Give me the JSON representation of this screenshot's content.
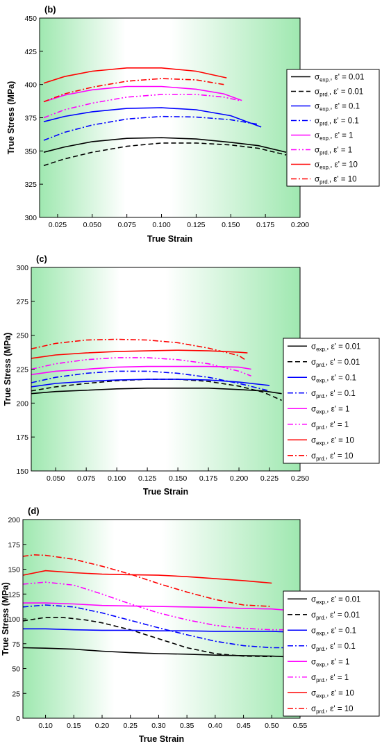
{
  "chart_data": [
    {
      "type": "line",
      "panel_label": "(b)",
      "xlabel": "True Strain",
      "ylabel": "True Stress (MPa)",
      "xlim": [
        0.012,
        0.2
      ],
      "ylim": [
        300,
        450
      ],
      "xticks": [
        0.025,
        0.05,
        0.075,
        0.1,
        0.125,
        0.15,
        0.175,
        0.2
      ],
      "xtick_labels": [
        "0.025",
        "0.050",
        "0.075",
        "0.100",
        "0.125",
        "0.150",
        "0.175",
        "0.200"
      ],
      "yticks": [
        300,
        325,
        350,
        375,
        400,
        425,
        450
      ],
      "ytick_labels": [
        "300",
        "325",
        "350",
        "375",
        "400",
        "425",
        "450"
      ],
      "legend_position": "right",
      "series": [
        {
          "name": "σexp., ε' = 0.01",
          "sym": "σ",
          "sub": "exp.",
          "rate": ", ε' = 0.01",
          "color": "#000000",
          "dash": "solid",
          "x": [
            0.015,
            0.03,
            0.05,
            0.075,
            0.1,
            0.125,
            0.15,
            0.17,
            0.19
          ],
          "y": [
            349,
            353,
            357,
            359.5,
            360,
            359,
            356.5,
            354,
            349
          ]
        },
        {
          "name": "σprd., ε' = 0.01",
          "sym": "σ",
          "sub": "prd.",
          "rate": ", ε' = 0.01",
          "color": "#000000",
          "dash": "dash",
          "x": [
            0.015,
            0.03,
            0.05,
            0.075,
            0.1,
            0.125,
            0.15,
            0.17,
            0.19
          ],
          "y": [
            339,
            344,
            349,
            353.5,
            356,
            356,
            354.5,
            352,
            347
          ]
        },
        {
          "name": "σexp., ε' = 0.1",
          "sym": "σ",
          "sub": "exp.",
          "rate": ", ε' = 0.1",
          "color": "#0000ff",
          "dash": "solid",
          "x": [
            0.015,
            0.03,
            0.05,
            0.075,
            0.1,
            0.125,
            0.15,
            0.172
          ],
          "y": [
            372,
            376,
            379.5,
            382,
            382.5,
            381,
            376.5,
            368
          ]
        },
        {
          "name": "σprd., ε' = 0.1",
          "sym": "σ",
          "sub": "prd.",
          "rate": ", ε' = 0.1",
          "color": "#0000ff",
          "dash": "dashdot",
          "x": [
            0.015,
            0.03,
            0.05,
            0.075,
            0.1,
            0.125,
            0.15,
            0.17
          ],
          "y": [
            358,
            364,
            369.5,
            374,
            376,
            375.5,
            373.5,
            370
          ]
        },
        {
          "name": "σexp., ε' = 1",
          "sym": "σ",
          "sub": "exp.",
          "rate": ", ε' = 1",
          "color": "#ff00ff",
          "dash": "solid",
          "x": [
            0.015,
            0.03,
            0.05,
            0.075,
            0.1,
            0.125,
            0.145,
            0.158
          ],
          "y": [
            387,
            392,
            396,
            398.5,
            398.5,
            396.5,
            393,
            388
          ]
        },
        {
          "name": "σprd., ε' = 1",
          "sym": "σ",
          "sub": "prd.",
          "rate": ", ε' = 1",
          "color": "#ff00ff",
          "dash": "dashdot2",
          "x": [
            0.015,
            0.03,
            0.05,
            0.075,
            0.1,
            0.125,
            0.145,
            0.156
          ],
          "y": [
            375,
            381,
            386,
            390.5,
            392.5,
            392.5,
            390.5,
            388
          ]
        },
        {
          "name": "σexp., ε' = 10",
          "sym": "σ",
          "sub": "exp.",
          "rate": ", ε' = 10",
          "color": "#ff0000",
          "dash": "solid",
          "x": [
            0.015,
            0.03,
            0.05,
            0.075,
            0.1,
            0.125,
            0.147
          ],
          "y": [
            401,
            406,
            410,
            412.5,
            412.5,
            410,
            405
          ]
        },
        {
          "name": "σprd., ε' = 10",
          "sym": "σ",
          "sub": "prd.",
          "rate": ", ε' = 10",
          "color": "#ff0000",
          "dash": "dashdot",
          "x": [
            0.015,
            0.03,
            0.05,
            0.075,
            0.1,
            0.125,
            0.145
          ],
          "y": [
            387,
            393,
            398,
            402.5,
            404.5,
            403.5,
            400
          ]
        }
      ]
    },
    {
      "type": "line",
      "panel_label": "(c)",
      "xlabel": "True Strain",
      "ylabel": "True Stress (MPa)",
      "xlim": [
        0.03,
        0.25
      ],
      "ylim": [
        150,
        300
      ],
      "xticks": [
        0.05,
        0.075,
        0.1,
        0.125,
        0.15,
        0.175,
        0.2,
        0.225,
        0.25
      ],
      "xtick_labels": [
        "0.050",
        "0.075",
        "0.100",
        "0.125",
        "0.150",
        "0.175",
        "0.200",
        "0.225",
        "0.250"
      ],
      "yticks": [
        150,
        175,
        200,
        225,
        250,
        275,
        300
      ],
      "ytick_labels": [
        "150",
        "175",
        "200",
        "225",
        "250",
        "275",
        "300"
      ],
      "legend_position": "right",
      "series": [
        {
          "name": "σexp., ε' = 0.01",
          "sym": "σ",
          "sub": "exp.",
          "rate": ", ε' = 0.01",
          "color": "#000000",
          "dash": "solid",
          "x": [
            0.03,
            0.05,
            0.075,
            0.1,
            0.125,
            0.15,
            0.175,
            0.2,
            0.22,
            0.235
          ],
          "y": [
            207,
            208.5,
            209.5,
            210.5,
            211,
            211,
            211,
            210,
            209,
            207
          ]
        },
        {
          "name": "σprd., ε' = 0.01",
          "sym": "σ",
          "sub": "prd.",
          "rate": ", ε' = 0.01",
          "color": "#000000",
          "dash": "dash",
          "x": [
            0.03,
            0.05,
            0.075,
            0.1,
            0.125,
            0.15,
            0.175,
            0.2,
            0.22,
            0.235
          ],
          "y": [
            209,
            212,
            214.5,
            216.5,
            217.5,
            217.5,
            216,
            212.5,
            208,
            202
          ]
        },
        {
          "name": "σexp., ε' = 0.1",
          "sym": "σ",
          "sub": "exp.",
          "rate": ", ε' = 0.1",
          "color": "#0000ff",
          "dash": "solid",
          "x": [
            0.03,
            0.05,
            0.075,
            0.1,
            0.125,
            0.15,
            0.175,
            0.2,
            0.225
          ],
          "y": [
            212,
            214.5,
            216,
            217,
            217.5,
            217.5,
            217,
            215.5,
            213
          ]
        },
        {
          "name": "σprd., ε' = 0.1",
          "sym": "σ",
          "sub": "prd.",
          "rate": ", ε' = 0.1",
          "color": "#0000ff",
          "dash": "dashdot",
          "x": [
            0.03,
            0.05,
            0.075,
            0.1,
            0.125,
            0.15,
            0.175,
            0.2,
            0.225
          ],
          "y": [
            215,
            219,
            222,
            223.5,
            223.5,
            222,
            219,
            214.5,
            209
          ]
        },
        {
          "name": "σexp., ε' = 1",
          "sym": "σ",
          "sub": "exp.",
          "rate": ", ε' = 1",
          "color": "#ff00ff",
          "dash": "solid",
          "x": [
            0.03,
            0.05,
            0.075,
            0.1,
            0.125,
            0.15,
            0.175,
            0.2,
            0.21
          ],
          "y": [
            221,
            223.5,
            225,
            226.5,
            227,
            227,
            227,
            226.5,
            225
          ]
        },
        {
          "name": "σprd., ε' = 1",
          "sym": "σ",
          "sub": "prd.",
          "rate": ", ε' = 1",
          "color": "#ff00ff",
          "dash": "dashdot2",
          "x": [
            0.03,
            0.05,
            0.075,
            0.1,
            0.125,
            0.15,
            0.175,
            0.2,
            0.21
          ],
          "y": [
            225,
            229,
            232,
            233.5,
            233.5,
            232,
            229,
            223.5,
            220
          ]
        },
        {
          "name": "σexp., ε' = 10",
          "sym": "σ",
          "sub": "exp.",
          "rate": ", ε' = 10",
          "color": "#ff0000",
          "dash": "solid",
          "x": [
            0.03,
            0.05,
            0.075,
            0.1,
            0.125,
            0.15,
            0.175,
            0.2,
            0.207
          ],
          "y": [
            233,
            235.5,
            237,
            238,
            238.5,
            239,
            238.5,
            237.5,
            237
          ]
        },
        {
          "name": "σprd., ε' = 10",
          "sym": "σ",
          "sub": "prd.",
          "rate": ", ε' = 10",
          "color": "#ff0000",
          "dash": "dashdot",
          "x": [
            0.03,
            0.05,
            0.075,
            0.1,
            0.125,
            0.15,
            0.175,
            0.2,
            0.205
          ],
          "y": [
            240,
            244,
            246.5,
            247,
            246.5,
            244.5,
            240.5,
            235,
            232
          ]
        }
      ]
    },
    {
      "type": "line",
      "panel_label": "(d)",
      "xlabel": "True Strain",
      "ylabel": "True Stress (MPa)",
      "xlim": [
        0.06,
        0.55
      ],
      "ylim": [
        0,
        200
      ],
      "xticks": [
        0.1,
        0.15,
        0.2,
        0.25,
        0.3,
        0.35,
        0.4,
        0.45,
        0.5,
        0.55
      ],
      "xtick_labels": [
        "0.10",
        "0.15",
        "0.20",
        "0.25",
        "0.30",
        "0.35",
        "0.40",
        "0.45",
        "0.50",
        "0.55"
      ],
      "yticks": [
        0,
        25,
        50,
        75,
        100,
        125,
        150,
        175,
        200
      ],
      "ytick_labels": [
        "0",
        "25",
        "50",
        "75",
        "100",
        "125",
        "150",
        "175",
        "200"
      ],
      "legend_position": "right",
      "series": [
        {
          "name": "σexp., ε' = 0.01",
          "sym": "σ",
          "sub": "exp.",
          "rate": ", ε' = 0.01",
          "color": "#000000",
          "dash": "solid",
          "x": [
            0.06,
            0.1,
            0.15,
            0.2,
            0.25,
            0.3,
            0.35,
            0.4,
            0.45,
            0.5,
            0.52
          ],
          "y": [
            71,
            70.5,
            69.5,
            67.5,
            66,
            65,
            64.5,
            63.5,
            63,
            62.5,
            62
          ]
        },
        {
          "name": "σprd., ε' = 0.01",
          "sym": "σ",
          "sub": "prd.",
          "rate": ", ε' = 0.01",
          "color": "#000000",
          "dash": "dash",
          "x": [
            0.06,
            0.1,
            0.13,
            0.17,
            0.2,
            0.25,
            0.3,
            0.35,
            0.4,
            0.45,
            0.5
          ],
          "y": [
            98,
            101.5,
            101.5,
            99,
            96,
            89,
            80,
            71,
            65,
            62.5,
            62
          ]
        },
        {
          "name": "σexp., ε' = 0.1",
          "sym": "σ",
          "sub": "exp.",
          "rate": ", ε' = 0.1",
          "color": "#0000ff",
          "dash": "solid",
          "x": [
            0.06,
            0.1,
            0.15,
            0.2,
            0.25,
            0.3,
            0.35,
            0.4,
            0.45,
            0.5,
            0.52
          ],
          "y": [
            90,
            90,
            89,
            88.5,
            88.5,
            88,
            88,
            87.5,
            87.5,
            87.5,
            87
          ]
        },
        {
          "name": "σprd., ε' = 0.1",
          "sym": "σ",
          "sub": "prd.",
          "rate": ", ε' = 0.1",
          "color": "#0000ff",
          "dash": "dashdot",
          "x": [
            0.06,
            0.1,
            0.15,
            0.2,
            0.25,
            0.3,
            0.35,
            0.4,
            0.45,
            0.5,
            0.52
          ],
          "y": [
            112,
            114,
            112,
            106,
            98.5,
            91,
            84,
            77.5,
            73,
            71,
            71
          ]
        },
        {
          "name": "σexp., ε' = 1",
          "sym": "σ",
          "sub": "exp.",
          "rate": ", ε' = 1",
          "color": "#ff00ff",
          "dash": "solid",
          "x": [
            0.06,
            0.1,
            0.15,
            0.2,
            0.25,
            0.3,
            0.35,
            0.4,
            0.45,
            0.5,
            0.52
          ],
          "y": [
            116,
            116,
            115,
            113.5,
            113,
            112.5,
            112,
            111.5,
            110.5,
            110,
            109
          ]
        },
        {
          "name": "σprd., ε' = 1",
          "sym": "σ",
          "sub": "prd.",
          "rate": ", ε' = 1",
          "color": "#ff00ff",
          "dash": "dashdot2",
          "x": [
            0.06,
            0.1,
            0.15,
            0.2,
            0.25,
            0.3,
            0.35,
            0.4,
            0.45,
            0.5,
            0.52
          ],
          "y": [
            135,
            137,
            134,
            125,
            115,
            106,
            99,
            93.5,
            90.5,
            89,
            89
          ]
        },
        {
          "name": "σexp., ε' = 10",
          "sym": "σ",
          "sub": "exp.",
          "rate": ", ε' = 10",
          "color": "#ff0000",
          "dash": "solid",
          "x": [
            0.06,
            0.1,
            0.15,
            0.2,
            0.25,
            0.3,
            0.35,
            0.4,
            0.45,
            0.5
          ],
          "y": [
            144,
            148.5,
            146.5,
            145,
            144.5,
            144,
            142.5,
            140.5,
            138.5,
            136
          ]
        },
        {
          "name": "σprd., ε' = 10",
          "sym": "σ",
          "sub": "prd.",
          "rate": ", ε' = 10",
          "color": "#ff0000",
          "dash": "dashdot",
          "x": [
            0.06,
            0.08,
            0.1,
            0.15,
            0.2,
            0.25,
            0.3,
            0.35,
            0.4,
            0.45,
            0.5
          ],
          "y": [
            163,
            164.5,
            164,
            160,
            153,
            145,
            135.5,
            127,
            119.5,
            114,
            112.5
          ]
        }
      ]
    }
  ]
}
